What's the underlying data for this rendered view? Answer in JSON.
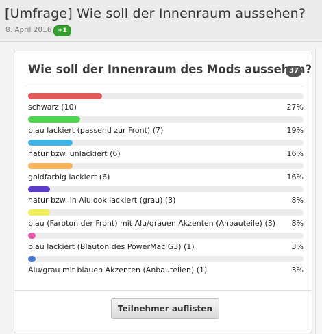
{
  "thread": {
    "title": "[Umfrage] Wie soll der Innenraum aussehen?",
    "date": "8. April 2016",
    "likes": "+1"
  },
  "poll": {
    "question": "Wie soll der Innenraum des Mods aussehen?",
    "votes": "37",
    "options": [
      {
        "label": "schwarz (10)",
        "percent": "27%",
        "fraction": 1.0,
        "color": "#e15a5a"
      },
      {
        "label": "blau lackiert (passend zur Front) (7)",
        "percent": "19%",
        "fraction": 0.7,
        "color": "#4fd64f"
      },
      {
        "label": "natur bzw. unlackiert (6)",
        "percent": "16%",
        "fraction": 0.6,
        "color": "#3fb3e3"
      },
      {
        "label": "goldfarbig lackiert (6)",
        "percent": "16%",
        "fraction": 0.6,
        "color": "#f7b45c"
      },
      {
        "label": "natur bzw. in Alulook lackiert (grau) (3)",
        "percent": "8%",
        "fraction": 0.3,
        "color": "#5a3ec8"
      },
      {
        "label": "blau (Farbton der Front) mit Alu/grauen Akzenten (Anbauteile) (3)",
        "percent": "8%",
        "fraction": 0.3,
        "color": "#f0f05a"
      },
      {
        "label": "blau lackiert (Blauton des PowerMac G3) (1)",
        "percent": "3%",
        "fraction": 0.1,
        "color": "#e85aa8"
      },
      {
        "label": "Alu/grau mit blauen Akzenten (Anbauteilen) (1)",
        "percent": "3%",
        "fraction": 0.1,
        "color": "#4a7bd0"
      }
    ],
    "button_label": "Teilnehmer auflisten"
  }
}
